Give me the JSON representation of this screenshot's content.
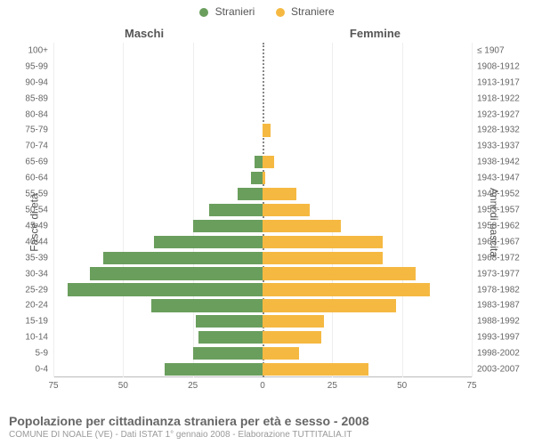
{
  "legend": {
    "male_label": "Stranieri",
    "female_label": "Straniere"
  },
  "column_titles": {
    "male": "Maschi",
    "female": "Femmine"
  },
  "axis_titles": {
    "left": "Fasce di età",
    "right": "Anni di nascita"
  },
  "chart": {
    "type": "population-pyramid",
    "max_value": 75,
    "x_ticks": [
      75,
      50,
      25,
      0,
      25,
      50,
      75
    ],
    "male_color": "#6a9e5d",
    "female_color": "#f5b942",
    "background_color": "#ffffff",
    "grid_color": "#eeeeee",
    "center_line_color": "#888888",
    "axis_line_color": "#bbbbbb",
    "label_fontsize": 10,
    "title_fontsize": 13,
    "rows": [
      {
        "age": "100+",
        "birth": "≤ 1907",
        "male": 0,
        "female": 0
      },
      {
        "age": "95-99",
        "birth": "1908-1912",
        "male": 0,
        "female": 0
      },
      {
        "age": "90-94",
        "birth": "1913-1917",
        "male": 0,
        "female": 0
      },
      {
        "age": "85-89",
        "birth": "1918-1922",
        "male": 0,
        "female": 0
      },
      {
        "age": "80-84",
        "birth": "1923-1927",
        "male": 0,
        "female": 0
      },
      {
        "age": "75-79",
        "birth": "1928-1932",
        "male": 0,
        "female": 3
      },
      {
        "age": "70-74",
        "birth": "1933-1937",
        "male": 0,
        "female": 0
      },
      {
        "age": "65-69",
        "birth": "1938-1942",
        "male": 3,
        "female": 4
      },
      {
        "age": "60-64",
        "birth": "1943-1947",
        "male": 4,
        "female": 1
      },
      {
        "age": "55-59",
        "birth": "1948-1952",
        "male": 9,
        "female": 12
      },
      {
        "age": "50-54",
        "birth": "1953-1957",
        "male": 19,
        "female": 17
      },
      {
        "age": "45-49",
        "birth": "1958-1962",
        "male": 25,
        "female": 28
      },
      {
        "age": "40-44",
        "birth": "1963-1967",
        "male": 39,
        "female": 43
      },
      {
        "age": "35-39",
        "birth": "1968-1972",
        "male": 57,
        "female": 43
      },
      {
        "age": "30-34",
        "birth": "1973-1977",
        "male": 62,
        "female": 55
      },
      {
        "age": "25-29",
        "birth": "1978-1982",
        "male": 70,
        "female": 60
      },
      {
        "age": "20-24",
        "birth": "1983-1987",
        "male": 40,
        "female": 48
      },
      {
        "age": "15-19",
        "birth": "1988-1992",
        "male": 24,
        "female": 22
      },
      {
        "age": "10-14",
        "birth": "1993-1997",
        "male": 23,
        "female": 21
      },
      {
        "age": "5-9",
        "birth": "1998-2002",
        "male": 25,
        "female": 13
      },
      {
        "age": "0-4",
        "birth": "2003-2007",
        "male": 35,
        "female": 38
      }
    ]
  },
  "footer": {
    "title": "Popolazione per cittadinanza straniera per età e sesso - 2008",
    "subtitle": "COMUNE DI NOALE (VE) - Dati ISTAT 1° gennaio 2008 - Elaborazione TUTTITALIA.IT"
  }
}
